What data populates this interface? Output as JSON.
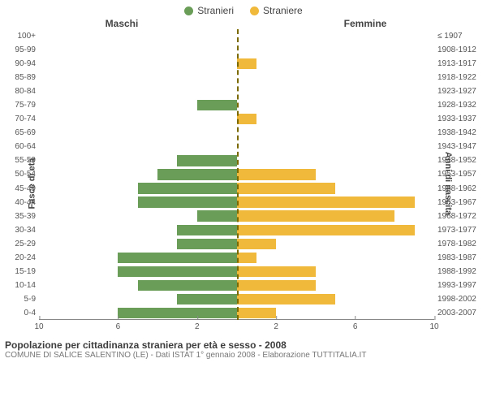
{
  "legend": {
    "male": "Stranieri",
    "female": "Straniere"
  },
  "headers": {
    "left": "Maschi",
    "right": "Femmine"
  },
  "axis_labels": {
    "left": "Fasce di età",
    "right": "Anni di nascita"
  },
  "chart": {
    "type": "population-pyramid",
    "xmax": 10,
    "male_color": "#6a9e58",
    "female_color": "#f1b93c",
    "background_color": "#ffffff",
    "center_line_color": "#7a6a00",
    "axis_color": "#888888",
    "label_fontsize": 10,
    "xticks": [
      10,
      6,
      2,
      2,
      6,
      10
    ],
    "rows": [
      {
        "age": "100+",
        "birth": "≤ 1907",
        "m": 0,
        "f": 0
      },
      {
        "age": "95-99",
        "birth": "1908-1912",
        "m": 0,
        "f": 0
      },
      {
        "age": "90-94",
        "birth": "1913-1917",
        "m": 0,
        "f": 1
      },
      {
        "age": "85-89",
        "birth": "1918-1922",
        "m": 0,
        "f": 0
      },
      {
        "age": "80-84",
        "birth": "1923-1927",
        "m": 0,
        "f": 0
      },
      {
        "age": "75-79",
        "birth": "1928-1932",
        "m": 2,
        "f": 0
      },
      {
        "age": "70-74",
        "birth": "1933-1937",
        "m": 0,
        "f": 1
      },
      {
        "age": "65-69",
        "birth": "1938-1942",
        "m": 0,
        "f": 0
      },
      {
        "age": "60-64",
        "birth": "1943-1947",
        "m": 0,
        "f": 0
      },
      {
        "age": "55-59",
        "birth": "1948-1952",
        "m": 3,
        "f": 0
      },
      {
        "age": "50-54",
        "birth": "1953-1957",
        "m": 4,
        "f": 4
      },
      {
        "age": "45-49",
        "birth": "1958-1962",
        "m": 5,
        "f": 5
      },
      {
        "age": "40-44",
        "birth": "1963-1967",
        "m": 5,
        "f": 9
      },
      {
        "age": "35-39",
        "birth": "1968-1972",
        "m": 2,
        "f": 8
      },
      {
        "age": "30-34",
        "birth": "1973-1977",
        "m": 3,
        "f": 9
      },
      {
        "age": "25-29",
        "birth": "1978-1982",
        "m": 3,
        "f": 2
      },
      {
        "age": "20-24",
        "birth": "1983-1987",
        "m": 6,
        "f": 1
      },
      {
        "age": "15-19",
        "birth": "1988-1992",
        "m": 6,
        "f": 4
      },
      {
        "age": "10-14",
        "birth": "1993-1997",
        "m": 5,
        "f": 4
      },
      {
        "age": "5-9",
        "birth": "1998-2002",
        "m": 3,
        "f": 5
      },
      {
        "age": "0-4",
        "birth": "2003-2007",
        "m": 6,
        "f": 2
      }
    ]
  },
  "footer": {
    "title": "Popolazione per cittadinanza straniera per età e sesso - 2008",
    "subtitle": "COMUNE DI SALICE SALENTINO (LE) - Dati ISTAT 1° gennaio 2008 - Elaborazione TUTTITALIA.IT"
  }
}
